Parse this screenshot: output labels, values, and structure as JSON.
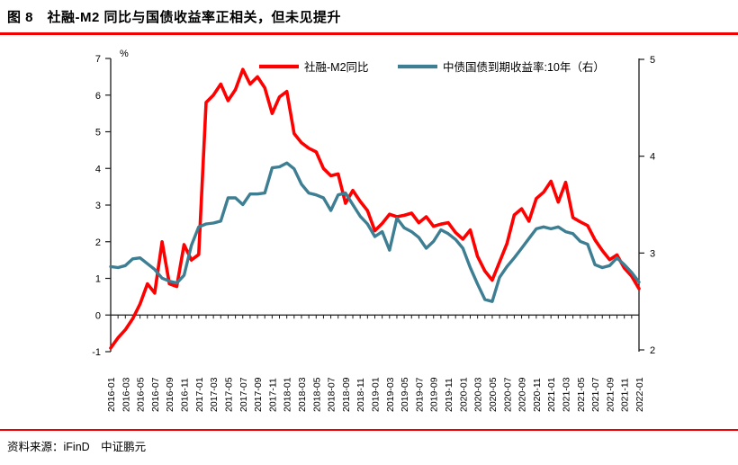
{
  "header": {
    "title": "图 8　社融-M2 同比与国债收益率正相关，但未见提升"
  },
  "footer": {
    "source_label": "资料来源：iFinD　中证鹏元"
  },
  "colors": {
    "accent_rule": "#f00000",
    "series1": "#fe0000",
    "series2": "#3d7e93",
    "axis": "#1a1a1a"
  },
  "chart_data": {
    "type": "line",
    "title": "图 8　社融-M2 同比与国债收益率正相关，但未见提升",
    "grid": false,
    "legend_position": "top-center",
    "x": [
      "2016-01",
      "2016-02",
      "2016-03",
      "2016-04",
      "2016-05",
      "2016-06",
      "2016-07",
      "2016-08",
      "2016-09",
      "2016-10",
      "2016-11",
      "2016-12",
      "2017-01",
      "2017-02",
      "2017-03",
      "2017-04",
      "2017-05",
      "2017-06",
      "2017-07",
      "2017-08",
      "2017-09",
      "2017-10",
      "2017-11",
      "2017-12",
      "2018-01",
      "2018-02",
      "2018-03",
      "2018-04",
      "2018-05",
      "2018-06",
      "2018-07",
      "2018-08",
      "2018-09",
      "2018-10",
      "2018-11",
      "2018-12",
      "2019-01",
      "2019-02",
      "2019-03",
      "2019-04",
      "2019-05",
      "2019-06",
      "2019-07",
      "2019-08",
      "2019-09",
      "2019-10",
      "2019-11",
      "2019-12",
      "2020-01",
      "2020-02",
      "2020-03",
      "2020-04",
      "2020-05",
      "2020-06",
      "2020-07",
      "2020-08",
      "2020-09",
      "2020-10",
      "2020-11",
      "2020-12",
      "2021-01",
      "2021-02",
      "2021-03",
      "2021-04",
      "2021-05",
      "2021-06",
      "2021-07",
      "2021-08",
      "2021-09",
      "2021-10",
      "2021-11",
      "2021-12",
      "2022-01"
    ],
    "x_tick_step": 2,
    "left_axis": {
      "label": "%",
      "min": -1,
      "max": 7,
      "ticks": [
        7,
        6,
        5,
        4,
        3,
        2,
        1,
        0,
        -1
      ]
    },
    "right_axis": {
      "min": 2,
      "max": 5,
      "ticks": [
        5,
        4,
        3,
        2
      ]
    },
    "series": [
      {
        "name": "社融-M2同比",
        "axis": "left",
        "color": "#fe0000",
        "values": [
          -0.9,
          -0.62,
          -0.4,
          -0.1,
          0.3,
          0.85,
          0.6,
          2.0,
          0.85,
          0.78,
          1.92,
          1.5,
          1.65,
          5.8,
          6.0,
          6.3,
          5.85,
          6.15,
          6.7,
          6.3,
          6.5,
          6.2,
          5.5,
          5.95,
          6.1,
          4.95,
          4.7,
          4.55,
          4.45,
          4.0,
          3.8,
          3.85,
          3.05,
          3.4,
          3.1,
          2.85,
          2.3,
          2.5,
          2.75,
          2.68,
          2.72,
          2.78,
          2.52,
          2.68,
          2.42,
          2.48,
          2.52,
          2.25,
          2.07,
          2.32,
          1.6,
          1.2,
          0.95,
          1.45,
          1.95,
          2.73,
          2.9,
          2.56,
          3.18,
          3.35,
          3.65,
          3.08,
          3.62,
          2.66,
          2.54,
          2.44,
          2.05,
          1.76,
          1.51,
          1.64,
          1.28,
          1.06,
          0.72
        ]
      },
      {
        "name": "中债国债到期收益率:10年（右）",
        "axis": "right",
        "color": "#3d7e93",
        "values": [
          2.86,
          2.85,
          2.87,
          2.94,
          2.95,
          2.89,
          2.83,
          2.74,
          2.71,
          2.69,
          2.77,
          3.08,
          3.27,
          3.3,
          3.31,
          3.33,
          3.57,
          3.57,
          3.5,
          3.61,
          3.61,
          3.62,
          3.88,
          3.89,
          3.93,
          3.87,
          3.71,
          3.62,
          3.6,
          3.57,
          3.44,
          3.6,
          3.62,
          3.5,
          3.38,
          3.3,
          3.17,
          3.22,
          3.03,
          3.36,
          3.26,
          3.22,
          3.16,
          3.05,
          3.12,
          3.24,
          3.2,
          3.14,
          3.05,
          2.85,
          2.68,
          2.52,
          2.5,
          2.75,
          2.86,
          2.95,
          3.05,
          3.15,
          3.25,
          3.27,
          3.25,
          3.27,
          3.22,
          3.2,
          3.12,
          3.09,
          2.88,
          2.85,
          2.87,
          2.95,
          2.88,
          2.8,
          2.7
        ]
      }
    ]
  }
}
